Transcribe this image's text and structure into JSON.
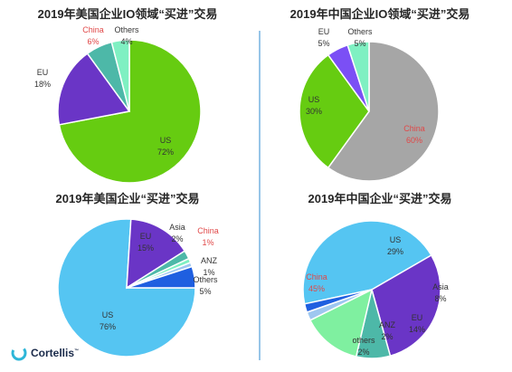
{
  "colors": {
    "us": "#66cc11",
    "china": "#4db8a8",
    "eu": "#6a35c6",
    "others": "#7ff0c2",
    "china_red": "#e04848"
  },
  "brand": {
    "name": "Cortellis",
    "mark": "™"
  },
  "chart_data": [
    {
      "type": "pie",
      "title": "2019年美国企业IO领域“买进”交易",
      "slices": [
        {
          "label": "US",
          "value": 72,
          "value_label": "72%",
          "color": "#66cc11"
        },
        {
          "label": "EU",
          "value": 18,
          "value_label": "18%",
          "color": "#6a35c6"
        },
        {
          "label": "China",
          "value": 6,
          "value_label": "6%",
          "color": "#4db8a8"
        },
        {
          "label": "Others",
          "value": 4,
          "value_label": "4%",
          "color": "#7ff0c2"
        }
      ]
    },
    {
      "type": "pie",
      "title": "2019年中国企业IO领域“买进”交易",
      "slices": [
        {
          "label": "China",
          "value": 60,
          "value_label": "60%",
          "color": "#a6a6a6"
        },
        {
          "label": "US",
          "value": 30,
          "value_label": "30%",
          "color": "#66cc11"
        },
        {
          "label": "EU",
          "value": 5,
          "value_label": "5%",
          "color": "#7b4ff5"
        },
        {
          "label": "Others",
          "value": 5,
          "value_label": "5%",
          "color": "#7ff0c2"
        }
      ]
    },
    {
      "type": "pie",
      "title": "2019年美国企业“买进”交易",
      "slices": [
        {
          "label": "US",
          "value": 76,
          "value_label": "76%",
          "color": "#55c5f2"
        },
        {
          "label": "EU",
          "value": 15,
          "value_label": "15%",
          "color": "#6a35c6"
        },
        {
          "label": "Asia",
          "value": 2,
          "value_label": "2%",
          "color": "#4db8a8"
        },
        {
          "label": "China",
          "value": 1,
          "value_label": "1%",
          "color": "#7ff0c2"
        },
        {
          "label": "ANZ",
          "value": 1,
          "value_label": "1%",
          "color": "#9ec7f0"
        },
        {
          "label": "Others",
          "value": 5,
          "value_label": "5%",
          "color": "#1f5fe0"
        }
      ]
    },
    {
      "type": "pie",
      "title": "2019年中国企业“买进”交易",
      "slices": [
        {
          "label": "China",
          "value": 45,
          "value_label": "45%",
          "color": "#55c5f2"
        },
        {
          "label": "US",
          "value": 29,
          "value_label": "29%",
          "color": "#6a35c6"
        },
        {
          "label": "Asia",
          "value": 8,
          "value_label": "8%",
          "color": "#4db8a8"
        },
        {
          "label": "EU",
          "value": 14,
          "value_label": "14%",
          "color": "#7ff0a0"
        },
        {
          "label": "ANZ",
          "value": 2,
          "value_label": "2%",
          "color": "#9ec7f0"
        },
        {
          "label": "others",
          "value": 2,
          "value_label": "2%",
          "color": "#1f5fe0"
        }
      ]
    }
  ]
}
